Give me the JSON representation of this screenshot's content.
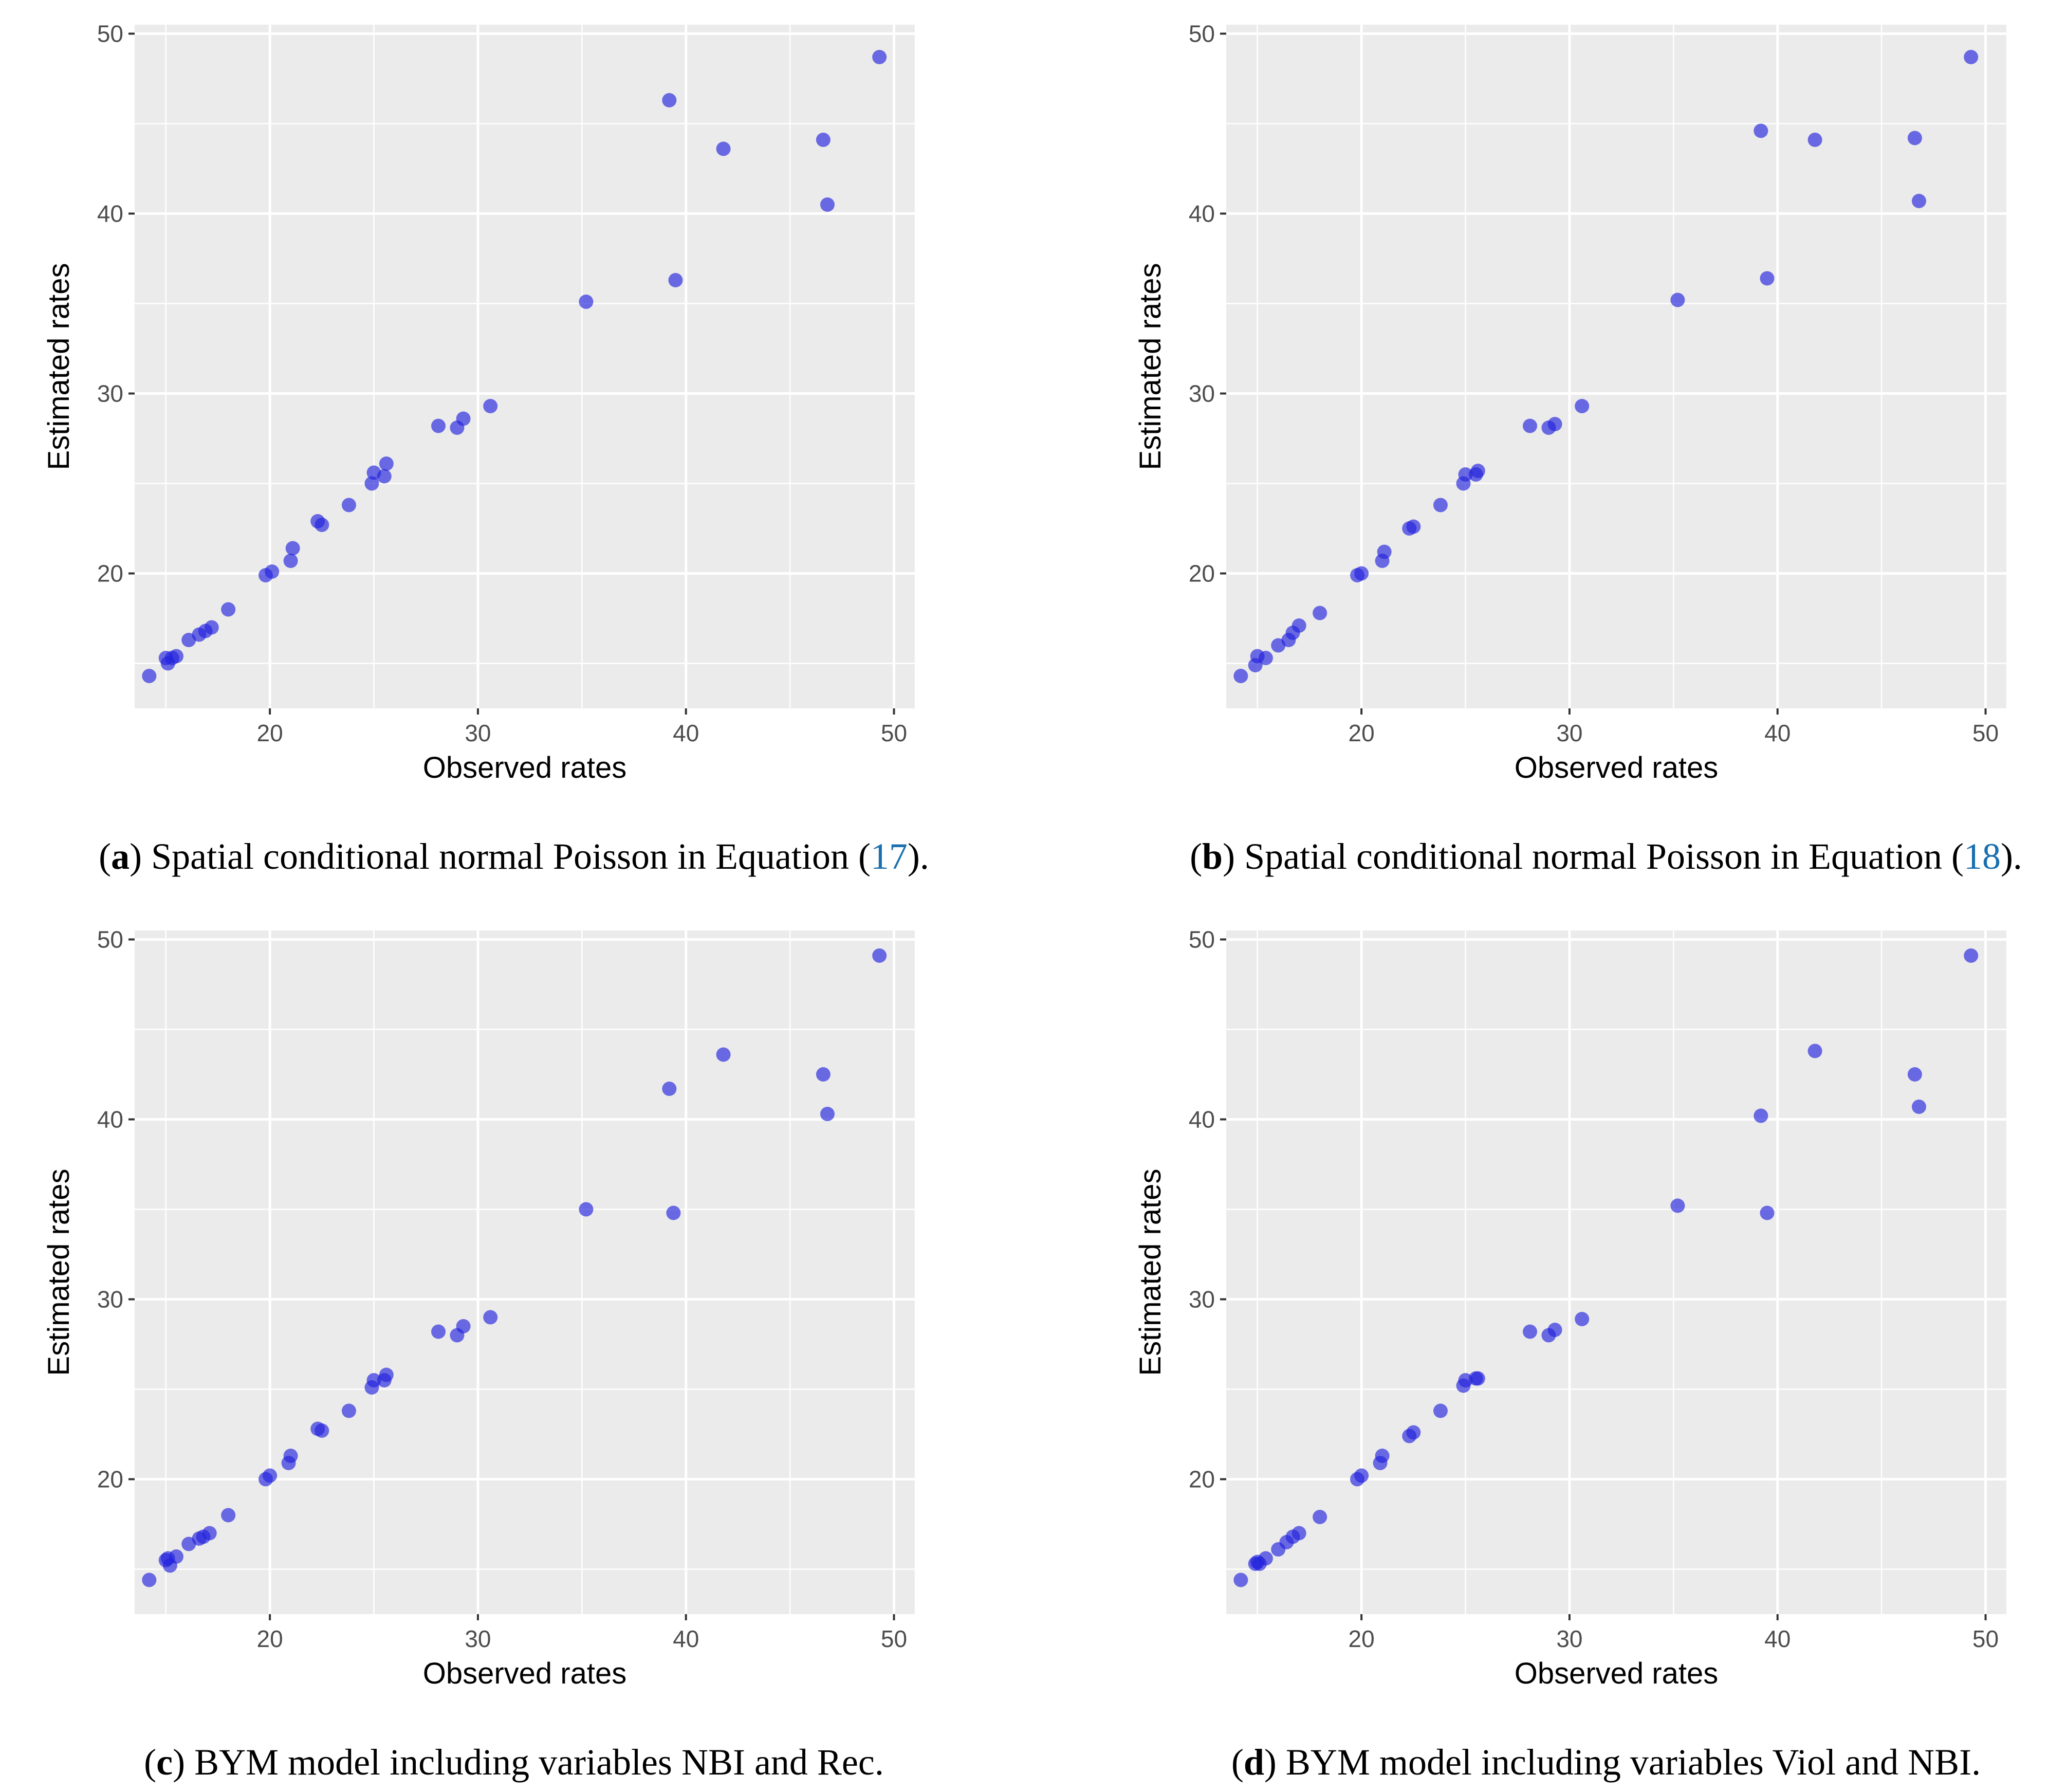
{
  "point_color": "#2222dd",
  "panel_background": "#ebebeb",
  "ref_color": "#1a6fb0",
  "chart_data": [
    {
      "type": "scatter",
      "letter": "a",
      "caption_text": " Spatial conditional normal Poisson in Equation (",
      "caption_ref": "17",
      "caption_end": ").",
      "xlabel": "Observed rates",
      "ylabel": "Estimated rates",
      "xlim": [
        13.5,
        51
      ],
      "ylim": [
        12.5,
        50.5
      ],
      "xticks": [
        20,
        30,
        40,
        50
      ],
      "yticks": [
        20,
        30,
        40,
        50
      ],
      "x": [
        14.2,
        15.0,
        15.3,
        15.1,
        15.5,
        16.1,
        16.6,
        16.9,
        17.2,
        18.0,
        19.8,
        20.1,
        21.0,
        21.1,
        22.3,
        22.5,
        23.8,
        24.9,
        25.0,
        25.5,
        25.6,
        28.1,
        29.0,
        29.3,
        30.6,
        35.2,
        39.2,
        39.5,
        41.8,
        46.6,
        46.8,
        49.3
      ],
      "y": [
        14.3,
        15.3,
        15.3,
        15.0,
        15.4,
        16.3,
        16.6,
        16.8,
        17.0,
        18.0,
        19.9,
        20.1,
        20.7,
        21.4,
        22.9,
        22.7,
        23.8,
        25.0,
        25.6,
        25.4,
        26.1,
        28.2,
        28.1,
        28.6,
        29.3,
        35.1,
        46.3,
        36.3,
        43.6,
        44.1,
        40.5,
        48.7
      ]
    },
    {
      "type": "scatter",
      "letter": "b",
      "caption_text": " Spatial conditional normal Poisson in Equation (",
      "caption_ref": "18",
      "caption_end": ").",
      "xlabel": "Observed rates",
      "ylabel": "Estimated rates",
      "xlim": [
        13.5,
        51
      ],
      "ylim": [
        12.5,
        50.5
      ],
      "xticks": [
        20,
        30,
        40,
        50
      ],
      "yticks": [
        20,
        30,
        40,
        50
      ],
      "x": [
        14.2,
        14.9,
        15.0,
        15.4,
        16.0,
        16.5,
        16.7,
        17.0,
        18.0,
        19.8,
        20.0,
        21.0,
        21.1,
        22.3,
        22.5,
        23.8,
        24.9,
        25.0,
        25.5,
        25.6,
        28.1,
        29.0,
        29.3,
        30.6,
        35.2,
        39.2,
        39.5,
        41.8,
        46.6,
        46.8,
        49.3
      ],
      "y": [
        14.3,
        14.9,
        15.4,
        15.3,
        16.0,
        16.3,
        16.7,
        17.1,
        17.8,
        19.9,
        20.0,
        20.7,
        21.2,
        22.5,
        22.6,
        23.8,
        25.0,
        25.5,
        25.5,
        25.7,
        28.2,
        28.1,
        28.3,
        29.3,
        35.2,
        44.6,
        36.4,
        44.1,
        44.2,
        40.7,
        48.7
      ]
    },
    {
      "type": "scatter",
      "letter": "c",
      "caption_text": " BYM model including variables NBI and Rec.",
      "caption_ref": "",
      "caption_end": "",
      "xlabel": "Observed rates",
      "ylabel": "Estimated rates",
      "xlim": [
        13.5,
        51
      ],
      "ylim": [
        12.5,
        50.5
      ],
      "xticks": [
        20,
        30,
        40,
        50
      ],
      "yticks": [
        20,
        30,
        40,
        50
      ],
      "x": [
        14.2,
        15.0,
        15.1,
        15.2,
        15.5,
        16.1,
        16.6,
        16.8,
        17.1,
        18.0,
        19.8,
        20.0,
        20.9,
        21.0,
        22.3,
        22.5,
        23.8,
        24.9,
        25.0,
        25.5,
        25.6,
        28.1,
        29.0,
        29.3,
        30.6,
        35.2,
        39.2,
        39.4,
        41.8,
        46.6,
        46.8,
        49.3
      ],
      "y": [
        14.4,
        15.5,
        15.6,
        15.2,
        15.7,
        16.4,
        16.7,
        16.8,
        17.0,
        18.0,
        20.0,
        20.2,
        20.9,
        21.3,
        22.8,
        22.7,
        23.8,
        25.1,
        25.5,
        25.5,
        25.8,
        28.2,
        28.0,
        28.5,
        29.0,
        35.0,
        41.7,
        34.8,
        43.6,
        42.5,
        40.3,
        49.1
      ]
    },
    {
      "type": "scatter",
      "letter": "d",
      "caption_text": " BYM model including variables Viol and NBI.",
      "caption_ref": "",
      "caption_end": "",
      "xlabel": "Observed rates",
      "ylabel": "Estimated rates",
      "xlim": [
        13.5,
        51
      ],
      "ylim": [
        12.5,
        50.5
      ],
      "xticks": [
        20,
        30,
        40,
        50
      ],
      "yticks": [
        20,
        30,
        40,
        50
      ],
      "x": [
        14.2,
        14.9,
        15.0,
        15.1,
        15.4,
        16.0,
        16.4,
        16.7,
        17.0,
        18.0,
        19.8,
        20.0,
        20.9,
        21.0,
        22.3,
        22.5,
        23.8,
        24.9,
        25.0,
        25.5,
        25.6,
        28.1,
        29.0,
        29.3,
        30.6,
        35.2,
        39.2,
        39.5,
        41.8,
        46.6,
        46.8,
        49.3
      ],
      "y": [
        14.4,
        15.3,
        15.4,
        15.3,
        15.6,
        16.1,
        16.5,
        16.8,
        17.0,
        17.9,
        20.0,
        20.2,
        20.9,
        21.3,
        22.4,
        22.6,
        23.8,
        25.2,
        25.5,
        25.6,
        25.6,
        28.2,
        28.0,
        28.3,
        28.9,
        35.2,
        40.2,
        34.8,
        43.8,
        42.5,
        40.7,
        49.1
      ]
    }
  ]
}
